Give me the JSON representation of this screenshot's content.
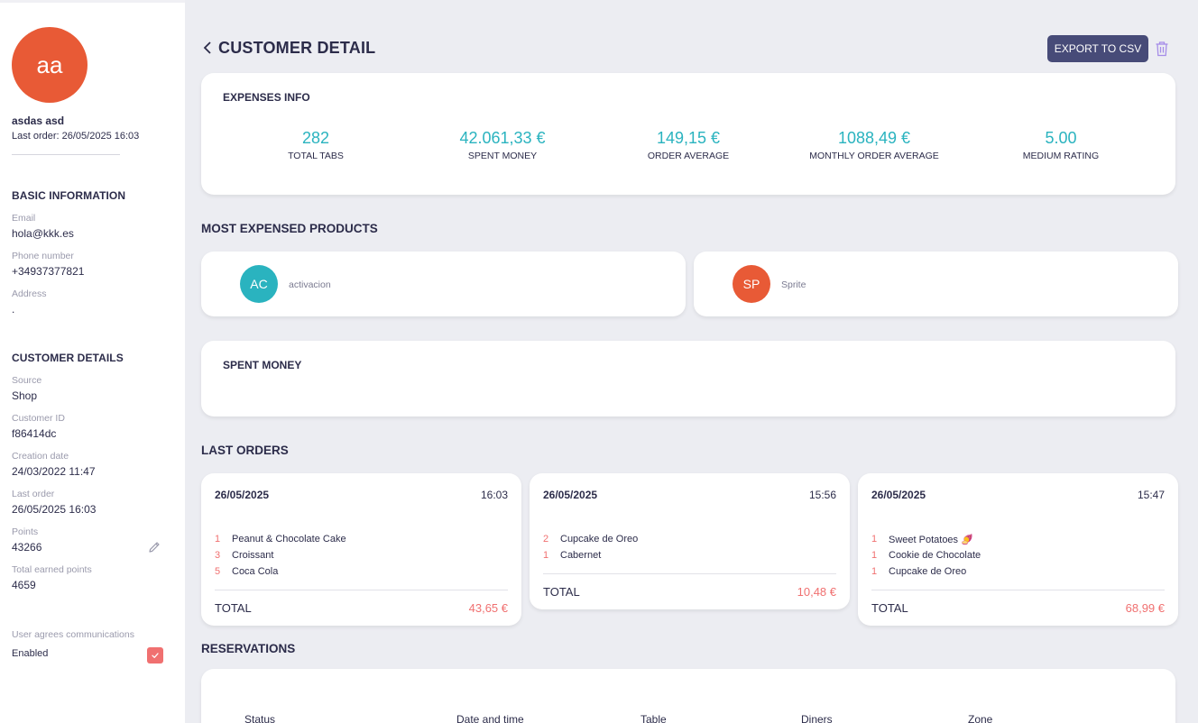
{
  "colors": {
    "accent_teal": "#2ab3bf",
    "accent_orange": "#e85a36",
    "accent_red": "#f07070",
    "button_navy": "#474b78"
  },
  "sidebar": {
    "avatar_initials": "aa",
    "name": "asdas asd",
    "last_order_line": "Last order: 26/05/2025 16:03",
    "basic_heading": "BASIC INFORMATION",
    "email_label": "Email",
    "email_value": "hola@kkk.es",
    "phone_label": "Phone number",
    "phone_value": "+34937377821",
    "address_label": "Address",
    "address_value": ".",
    "details_heading": "CUSTOMER DETAILS",
    "source_label": "Source",
    "source_value": "Shop",
    "customer_id_label": "Customer ID",
    "customer_id_value": "f86414dc",
    "creation_label": "Creation date",
    "creation_value": "24/03/2022 11:47",
    "last_order_label": "Last order",
    "last_order_value": "26/05/2025 16:03",
    "points_label": "Points",
    "points_value": "43266",
    "earned_label": "Total earned points",
    "earned_value": "4659",
    "comms_label": "User agrees communications",
    "comms_value": "Enabled",
    "comms_checked": true
  },
  "header": {
    "title": "CUSTOMER DETAIL",
    "export_label": "EXPORT TO CSV"
  },
  "expenses": {
    "title": "EXPENSES INFO",
    "stats": [
      {
        "value": "282",
        "label": "TOTAL TABS"
      },
      {
        "value": "42.061,33 €",
        "label": "SPENT MONEY"
      },
      {
        "value": "149,15 €",
        "label": "ORDER AVERAGE"
      },
      {
        "value": "1088,49 €",
        "label": "MONTHLY ORDER AVERAGE"
      },
      {
        "value": "5.00",
        "label": "MEDIUM RATING"
      }
    ]
  },
  "products": {
    "heading": "MOST EXPENSED PRODUCTS",
    "items": [
      {
        "initials": "AC",
        "name": "activacion",
        "color": "#2ab3bf"
      },
      {
        "initials": "SP",
        "name": "Sprite",
        "color": "#e85a36"
      }
    ]
  },
  "spent_money": {
    "title": "SPENT MONEY"
  },
  "orders": {
    "heading": "LAST ORDERS",
    "total_label": "TOTAL",
    "items": [
      {
        "date": "26/05/2025",
        "time": "16:03",
        "total": "43,65 €",
        "lines": [
          {
            "qty": "1",
            "name": "Peanut & Chocolate Cake"
          },
          {
            "qty": "3",
            "name": "Croissant"
          },
          {
            "qty": "5",
            "name": "Coca Cola"
          }
        ]
      },
      {
        "date": "26/05/2025",
        "time": "15:56",
        "total": "10,48 €",
        "lines": [
          {
            "qty": "2",
            "name": "Cupcake de Oreo"
          },
          {
            "qty": "1",
            "name": "Cabernet"
          }
        ]
      },
      {
        "date": "26/05/2025",
        "time": "15:47",
        "total": "68,99 €",
        "lines": [
          {
            "qty": "1",
            "name": "Sweet Potatoes 🍠"
          },
          {
            "qty": "1",
            "name": "Cookie de Chocolate"
          },
          {
            "qty": "1",
            "name": "Cupcake de Oreo"
          }
        ]
      }
    ]
  },
  "reservations": {
    "heading": "RESERVATIONS",
    "columns": [
      "Status",
      "Date and time",
      "Table",
      "Diners",
      "Zone"
    ]
  }
}
